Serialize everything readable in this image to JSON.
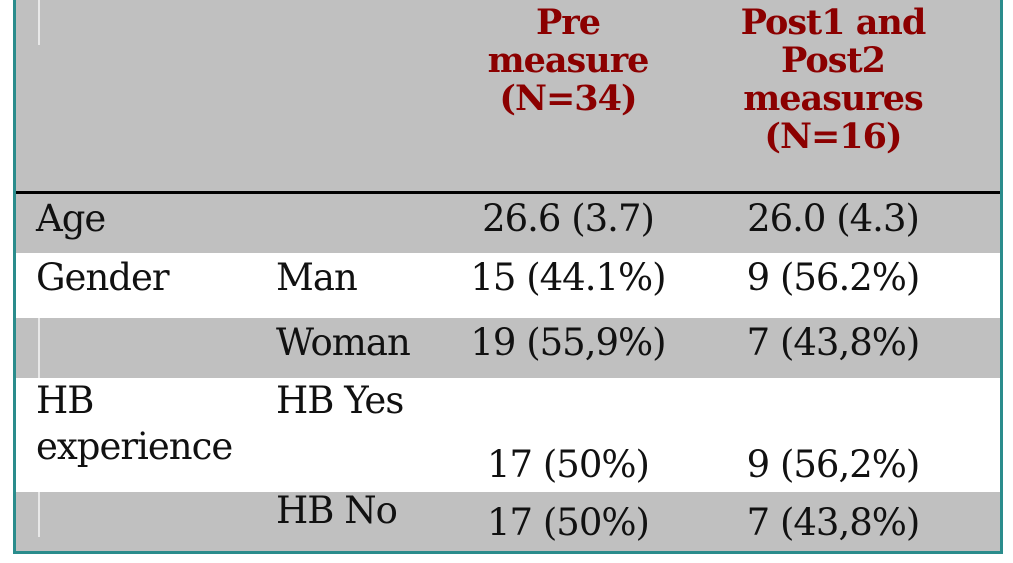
{
  "table": {
    "header": {
      "col3": [
        "Pre",
        "measure",
        "(N=34)"
      ],
      "col4": [
        "Post1 and",
        "Post2",
        "measures",
        "(N=16)"
      ]
    },
    "rows": [
      {
        "c1": "Age",
        "c2": "",
        "c3": "26.6 (3.7)",
        "c4": "26.0 (4.3)"
      },
      {
        "c1": "Gender",
        "c2": "Man",
        "c3": "15 (44.1%)",
        "c4": "9 (56.2%)"
      },
      {
        "c1": "",
        "c2": "Woman",
        "c3": "19 (55,9%)",
        "c4": "7 (43,8%)"
      },
      {
        "c1a": "HB",
        "c1b": "experience",
        "c2": "HB Yes",
        "c3": "17 (50%)",
        "c4": "9 (56,2%)"
      },
      {
        "c1": "",
        "c2": "HB No",
        "c3": "17 (50%)",
        "c4": "7 (43,8%)"
      }
    ]
  },
  "colors": {
    "header_text": "#8b0000",
    "row_gray": "#c0c0c0",
    "row_white": "#ffffff",
    "frame_border": "#2a8c8c"
  }
}
